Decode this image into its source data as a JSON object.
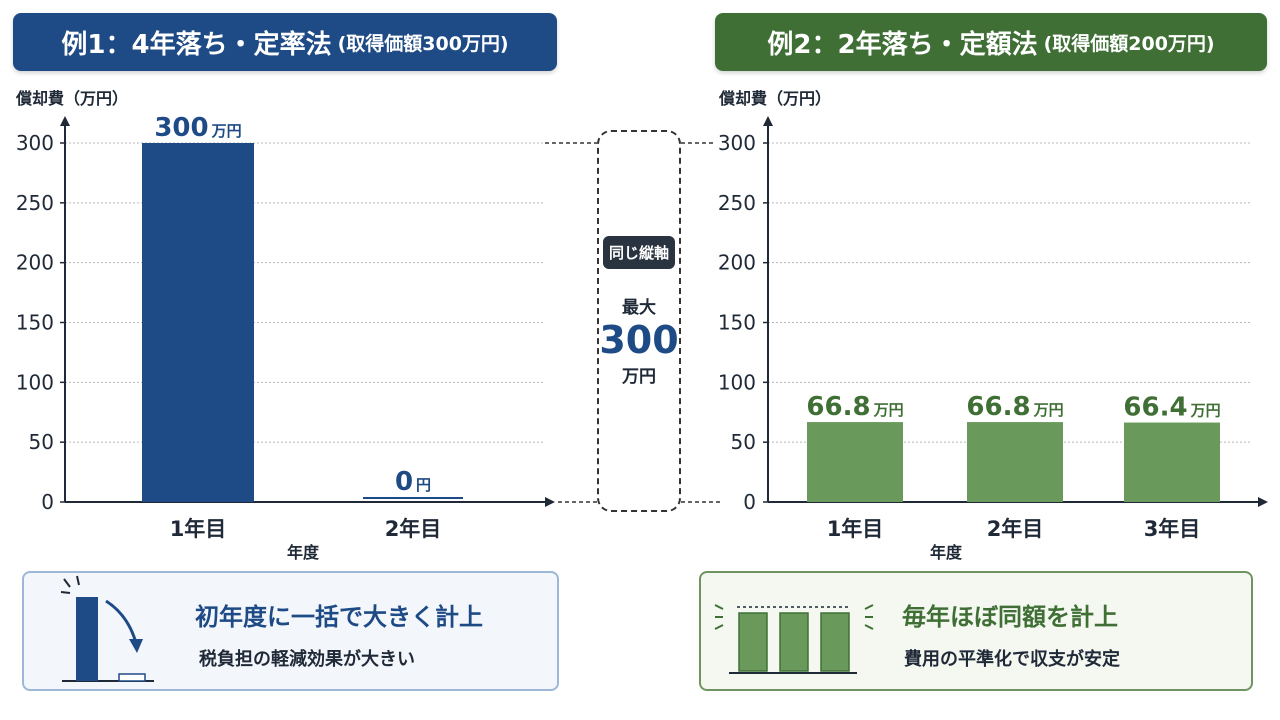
{
  "left_banner": {
    "title": "例1：4年落ち・定率法",
    "subtitle": "(取得価額300万円)"
  },
  "right_banner": {
    "title": "例2：2年落ち・定額法",
    "subtitle": "(取得価額200万円)"
  },
  "axis_badge": {
    "label": "同じ縦軸",
    "max_label": "最大",
    "max_value": "300",
    "max_unit": "万円"
  },
  "left_card": {
    "title": "初年度に一括で大きく計上",
    "desc": "税負担の軽減効果が大きい",
    "icon": "falling-bar-icon"
  },
  "right_card": {
    "title": "毎年ほぼ同額を計上",
    "desc": "費用の平準化で収支が安定",
    "icon": "equal-bars-icon"
  },
  "colors": {
    "left_accent": "#1e4a85",
    "right_accent": "#3f6f35",
    "right_bar": "#6a9a5b"
  },
  "chart_data": [
    {
      "type": "bar",
      "categories": [
        "1年目",
        "2年目"
      ],
      "values": [
        300,
        0
      ],
      "value_labels": [
        {
          "num": "300",
          "unit": "万円"
        },
        {
          "num": "0",
          "unit": "円"
        }
      ],
      "yticks": [
        0,
        50,
        100,
        150,
        200,
        250,
        300
      ],
      "ylim": [
        0,
        300
      ],
      "ylabel": "償却費（万円）",
      "xlabel": "年度",
      "grid": true,
      "color": "#1e4a85"
    },
    {
      "type": "bar",
      "categories": [
        "1年目",
        "2年目",
        "3年目"
      ],
      "values": [
        66.8,
        66.8,
        66.4
      ],
      "value_labels": [
        {
          "num": "66.8",
          "unit": "万円"
        },
        {
          "num": "66.8",
          "unit": "万円"
        },
        {
          "num": "66.4",
          "unit": "万円"
        }
      ],
      "yticks": [
        0,
        50,
        100,
        150,
        200,
        250,
        300
      ],
      "ylim": [
        0,
        300
      ],
      "ylabel": "償却費（万円）",
      "xlabel": "年度",
      "grid": true,
      "color": "#6a9a5b"
    }
  ]
}
